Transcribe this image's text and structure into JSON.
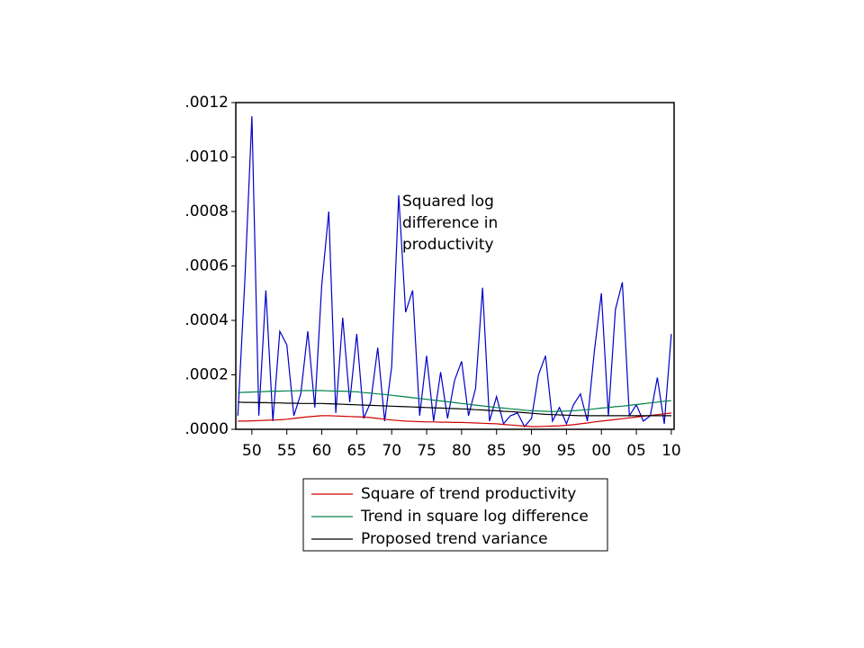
{
  "chart_data": {
    "type": "line",
    "annotation": [
      "Squared log",
      "difference in",
      "productivity"
    ],
    "x": [
      1948,
      1949,
      1950,
      1951,
      1952,
      1953,
      1954,
      1955,
      1956,
      1957,
      1958,
      1959,
      1960,
      1961,
      1962,
      1963,
      1964,
      1965,
      1966,
      1967,
      1968,
      1969,
      1970,
      1971,
      1972,
      1973,
      1974,
      1975,
      1976,
      1977,
      1978,
      1979,
      1980,
      1981,
      1982,
      1983,
      1984,
      1985,
      1986,
      1987,
      1988,
      1989,
      1990,
      1991,
      1992,
      1993,
      1994,
      1995,
      1996,
      1997,
      1998,
      1999,
      2000,
      2001,
      2002,
      2003,
      2004,
      2005,
      2006,
      2007,
      2008,
      2009,
      2010
    ],
    "xlim": [
      1947.7,
      2010.4
    ],
    "xticks": [
      {
        "value": 1950,
        "label": "50"
      },
      {
        "value": 1955,
        "label": "55"
      },
      {
        "value": 1960,
        "label": "60"
      },
      {
        "value": 1965,
        "label": "65"
      },
      {
        "value": 1970,
        "label": "70"
      },
      {
        "value": 1975,
        "label": "75"
      },
      {
        "value": 1980,
        "label": "80"
      },
      {
        "value": 1985,
        "label": "85"
      },
      {
        "value": 1990,
        "label": "90"
      },
      {
        "value": 1995,
        "label": "95"
      },
      {
        "value": 2000,
        "label": "00"
      },
      {
        "value": 2005,
        "label": "05"
      },
      {
        "value": 2010,
        "label": "10"
      }
    ],
    "ylim": [
      0,
      0.0012
    ],
    "yticks": [
      {
        "value": 0,
        "label": ".0000"
      },
      {
        "value": 0.0002,
        "label": ".0002"
      },
      {
        "value": 0.0004,
        "label": ".0004"
      },
      {
        "value": 0.0006,
        "label": ".0006"
      },
      {
        "value": 0.0008,
        "label": ".0008"
      },
      {
        "value": 0.001,
        "label": ".0010"
      },
      {
        "value": 0.0012,
        "label": ".0012"
      }
    ],
    "series": [
      {
        "name": "Squared log difference in productivity",
        "color": "#0000c8",
        "legend": false,
        "values": [
          5e-05,
          0.00055,
          0.00115,
          5e-05,
          0.00051,
          3e-05,
          0.00036,
          0.00031,
          5e-05,
          0.00013,
          0.00036,
          8e-05,
          0.00053,
          0.0008,
          6e-05,
          0.00041,
          0.0001,
          0.00035,
          4e-05,
          0.0001,
          0.0003,
          3e-05,
          0.00023,
          0.00086,
          0.00043,
          0.00051,
          5e-05,
          0.00027,
          3e-05,
          0.00021,
          4e-05,
          0.00018,
          0.00025,
          5e-05,
          0.00015,
          0.00052,
          3e-05,
          0.00012,
          2e-05,
          5e-05,
          6e-05,
          1e-05,
          4e-05,
          0.0002,
          0.00027,
          3e-05,
          8e-05,
          2e-05,
          9e-05,
          0.00013,
          3e-05,
          0.00029,
          0.0005,
          5e-05,
          0.00044,
          0.00054,
          5e-05,
          9e-05,
          3e-05,
          5e-05,
          0.00019,
          2e-05,
          0.00035
        ]
      },
      {
        "name": "Square of trend productivity",
        "color": "#d00000",
        "values": [
          3e-05,
          3e-05,
          3.1e-05,
          3.2e-05,
          3.3e-05,
          3.4e-05,
          3.5e-05,
          3.7e-05,
          4e-05,
          4.3e-05,
          4.6e-05,
          4.8e-05,
          5e-05,
          5e-05,
          4.9e-05,
          4.8e-05,
          4.7e-05,
          4.6e-05,
          4.5e-05,
          4.3e-05,
          4e-05,
          3.7e-05,
          3.4e-05,
          3.2e-05,
          3e-05,
          2.9e-05,
          2.8e-05,
          2.7e-05,
          2.7e-05,
          2.6e-05,
          2.6e-05,
          2.5e-05,
          2.5e-05,
          2.4e-05,
          2.3e-05,
          2.2e-05,
          2.1e-05,
          2e-05,
          1.8e-05,
          1.6e-05,
          1.4e-05,
          1.2e-05,
          1e-05,
          1e-05,
          1.1e-05,
          1.2e-05,
          1.3e-05,
          1.5e-05,
          1.7e-05,
          2e-05,
          2.3e-05,
          2.7e-05,
          3e-05,
          3.3e-05,
          3.6e-05,
          3.9e-05,
          4.2e-05,
          4.5e-05,
          4.8e-05,
          5.1e-05,
          5.4e-05,
          5.7e-05,
          6e-05
        ]
      },
      {
        "name": "Trend in square log difference",
        "color": "#00804a",
        "values": [
          0.000135,
          0.000136,
          0.000137,
          0.000138,
          0.000139,
          0.00014,
          0.00014,
          0.000141,
          0.000141,
          0.000142,
          0.000142,
          0.000142,
          0.000142,
          0.000141,
          0.00014,
          0.00014,
          0.000139,
          0.000138,
          0.000135,
          0.000133,
          0.00013,
          0.000128,
          0.000125,
          0.000122,
          0.000119,
          0.000116,
          0.000113,
          0.00011,
          0.000107,
          0.000104,
          0.000101,
          9.8e-05,
          9.5e-05,
          9.2e-05,
          8.9e-05,
          8.6e-05,
          8.3e-05,
          8e-05,
          7.8e-05,
          7.5e-05,
          7.3e-05,
          7e-05,
          6.8e-05,
          6.7e-05,
          6.6e-05,
          6.5e-05,
          6.6e-05,
          6.7e-05,
          6.8e-05,
          7e-05,
          7.2e-05,
          7.5e-05,
          7.8e-05,
          8e-05,
          8.3e-05,
          8.5e-05,
          8.8e-05,
          9.1e-05,
          9.4e-05,
          9.7e-05,
          0.0001,
          0.000103,
          0.000105
        ]
      },
      {
        "name": "Proposed trend variance",
        "color": "#000000",
        "values": [
          0.0001,
          9.9e-05,
          9.9e-05,
          9.8e-05,
          9.8e-05,
          9.7e-05,
          9.7e-05,
          9.6e-05,
          9.6e-05,
          9.5e-05,
          9.5e-05,
          9.5e-05,
          9.5e-05,
          9.4e-05,
          9.3e-05,
          9.2e-05,
          9.1e-05,
          9e-05,
          8.9e-05,
          8.8e-05,
          8.7e-05,
          8.6e-05,
          8.5e-05,
          8.4e-05,
          8.3e-05,
          8.2e-05,
          8.1e-05,
          8e-05,
          7.9e-05,
          7.8e-05,
          7.7e-05,
          7.6e-05,
          7.5e-05,
          7.4e-05,
          7.2e-05,
          7.1e-05,
          6.9e-05,
          6.8e-05,
          6.6e-05,
          6.5e-05,
          6.3e-05,
          6.1e-05,
          5.9e-05,
          5.7e-05,
          5.5e-05,
          5.4e-05,
          5.3e-05,
          5.2e-05,
          5.1e-05,
          5e-05,
          5e-05,
          5e-05,
          5e-05,
          5e-05,
          5e-05,
          5e-05,
          5e-05,
          5e-05,
          5e-05,
          5e-05,
          5e-05,
          5e-05,
          5e-05
        ]
      }
    ]
  }
}
